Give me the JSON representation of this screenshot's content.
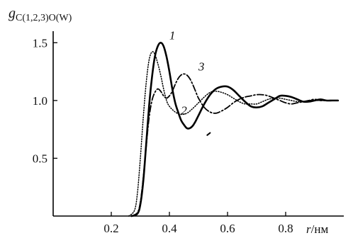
{
  "chart_data": {
    "type": "line",
    "ylabel": "g",
    "ylabel_sub": "C(1,2,3)O(W)",
    "xlabel_var": "r",
    "xlabel_unit": "/нм",
    "xlim": [
      0.0,
      1.0
    ],
    "ylim": [
      0.0,
      1.6
    ],
    "xticks": [
      0.2,
      0.4,
      0.6,
      0.8
    ],
    "xtick_labels": [
      "0.2",
      "0.4",
      "0.6",
      "0.8"
    ],
    "yticks": [
      0.5,
      1.0,
      1.5
    ],
    "ytick_labels": [
      "0.5",
      "1.0",
      "1.5"
    ],
    "grid": false,
    "series": [
      {
        "name": "1",
        "style": "solid",
        "x": [
          0.27,
          0.29,
          0.3,
          0.31,
          0.32,
          0.33,
          0.34,
          0.35,
          0.36,
          0.37,
          0.38,
          0.39,
          0.4,
          0.41,
          0.42,
          0.43,
          0.44,
          0.45,
          0.46,
          0.47,
          0.48,
          0.49,
          0.5,
          0.52,
          0.54,
          0.56,
          0.58,
          0.6,
          0.62,
          0.64,
          0.66,
          0.68,
          0.7,
          0.72,
          0.74,
          0.76,
          0.78,
          0.8,
          0.82,
          0.84,
          0.86,
          0.88,
          0.9,
          0.92,
          0.94,
          0.96,
          0.98
        ],
        "y": [
          0.0,
          0.02,
          0.1,
          0.3,
          0.62,
          0.95,
          1.2,
          1.38,
          1.47,
          1.5,
          1.47,
          1.38,
          1.25,
          1.1,
          0.98,
          0.9,
          0.83,
          0.79,
          0.76,
          0.76,
          0.78,
          0.82,
          0.87,
          0.97,
          1.05,
          1.1,
          1.12,
          1.12,
          1.09,
          1.04,
          0.99,
          0.95,
          0.94,
          0.95,
          0.98,
          1.01,
          1.04,
          1.04,
          1.03,
          1.01,
          0.99,
          0.99,
          1.0,
          1.01,
          1.0,
          1.0,
          1.0
        ]
      },
      {
        "name": "2",
        "style": "dotted",
        "x": [
          0.26,
          0.28,
          0.29,
          0.3,
          0.31,
          0.32,
          0.33,
          0.34,
          0.35,
          0.36,
          0.37,
          0.38,
          0.39,
          0.4,
          0.42,
          0.44,
          0.46,
          0.48,
          0.5,
          0.52,
          0.54,
          0.56,
          0.58,
          0.6,
          0.62,
          0.64,
          0.66,
          0.68,
          0.7,
          0.72,
          0.74,
          0.76,
          0.78,
          0.8,
          0.82,
          0.84,
          0.86,
          0.88,
          0.9,
          0.92,
          0.94,
          0.96,
          0.98
        ],
        "y": [
          0.0,
          0.05,
          0.2,
          0.5,
          0.85,
          1.15,
          1.35,
          1.42,
          1.4,
          1.32,
          1.22,
          1.1,
          1.0,
          0.95,
          0.9,
          0.88,
          0.89,
          0.93,
          0.98,
          1.03,
          1.07,
          1.08,
          1.07,
          1.05,
          1.02,
          0.99,
          0.97,
          0.97,
          0.97,
          0.99,
          1.01,
          1.02,
          1.02,
          1.01,
          1.0,
          0.99,
          0.99,
          1.0,
          1.0,
          1.0,
          1.0,
          1.0,
          1.0
        ]
      },
      {
        "name": "3",
        "style": "dashdot",
        "x": [
          0.27,
          0.29,
          0.3,
          0.31,
          0.32,
          0.33,
          0.34,
          0.35,
          0.36,
          0.37,
          0.38,
          0.39,
          0.4,
          0.41,
          0.42,
          0.43,
          0.44,
          0.45,
          0.46,
          0.47,
          0.48,
          0.49,
          0.5,
          0.52,
          0.54,
          0.56,
          0.58,
          0.6,
          0.62,
          0.64,
          0.66,
          0.68,
          0.7,
          0.72,
          0.74,
          0.76,
          0.78,
          0.8,
          0.82,
          0.84,
          0.86,
          0.88,
          0.9,
          0.92,
          0.94,
          0.96,
          0.98
        ],
        "y": [
          0.0,
          0.03,
          0.12,
          0.33,
          0.6,
          0.85,
          1.0,
          1.07,
          1.1,
          1.08,
          1.04,
          1.02,
          1.04,
          1.08,
          1.14,
          1.19,
          1.22,
          1.23,
          1.22,
          1.19,
          1.14,
          1.08,
          1.02,
          0.94,
          0.9,
          0.89,
          0.91,
          0.94,
          0.98,
          1.01,
          1.03,
          1.04,
          1.05,
          1.05,
          1.04,
          1.02,
          1.0,
          0.98,
          0.97,
          0.98,
          0.99,
          1.0,
          1.01,
          1.0,
          1.0,
          1.0,
          1.0
        ]
      }
    ],
    "curve_labels": [
      {
        "text": "1",
        "x": 0.41,
        "y": 1.53
      },
      {
        "text": "2",
        "x": 0.45,
        "y": 0.88
      },
      {
        "text": "3",
        "x": 0.51,
        "y": 1.26
      }
    ],
    "stray_mark": {
      "x": [
        0.53,
        0.54
      ],
      "y": [
        0.7,
        0.72
      ]
    }
  }
}
